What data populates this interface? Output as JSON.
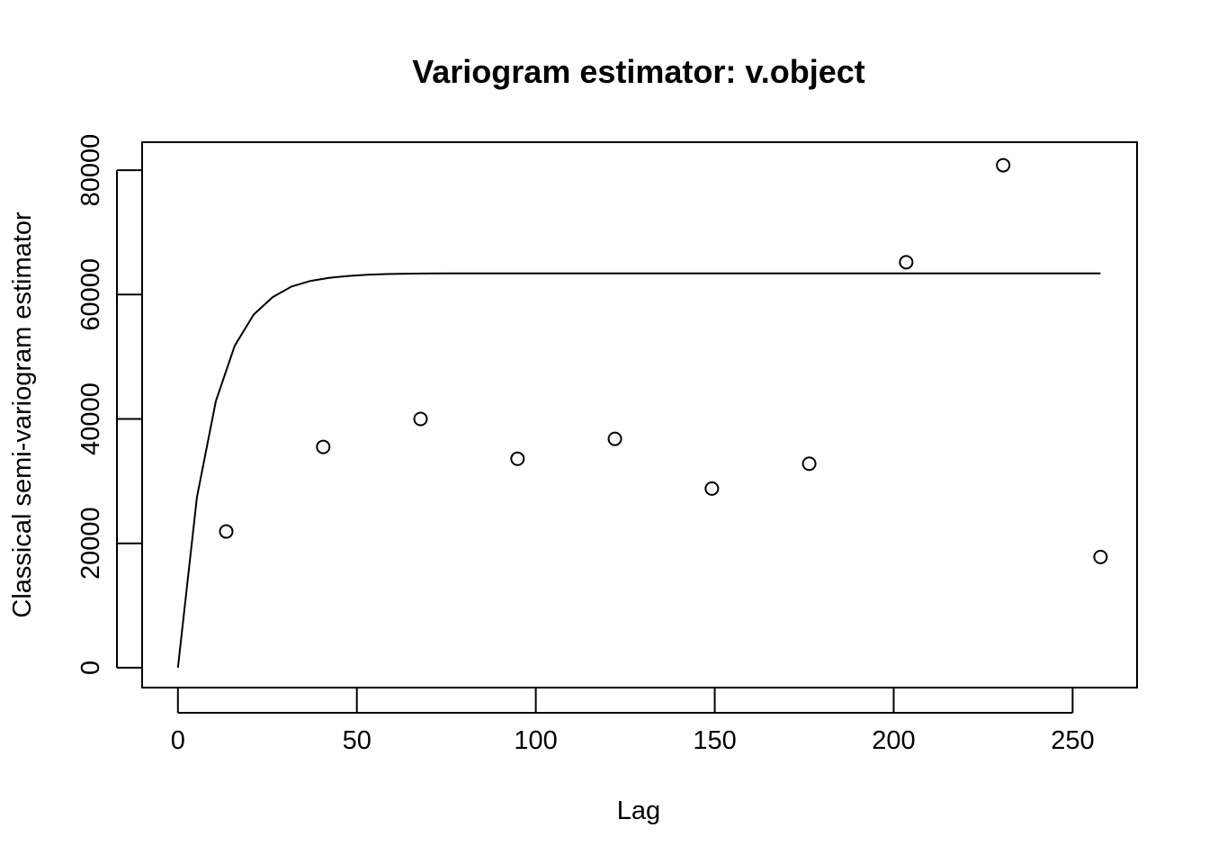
{
  "chart_data": {
    "type": "scatter",
    "title": "Variogram estimator: v.object",
    "xlabel": "Lag",
    "ylabel": "Classical semi-variogram estimator",
    "xlim": [
      -10,
      268
    ],
    "ylim": [
      -3200,
      84500
    ],
    "x_ticks": [
      0,
      50,
      100,
      150,
      200,
      250
    ],
    "x_tick_labels": [
      "0",
      "50",
      "100",
      "150",
      "200",
      "250"
    ],
    "y_ticks": [
      0,
      20000,
      40000,
      60000,
      80000
    ],
    "y_tick_labels": [
      "0",
      "20000",
      "40000",
      "60000",
      "80000"
    ],
    "grid": false,
    "points": {
      "x": [
        13.5,
        40.6,
        67.8,
        94.9,
        122.1,
        149.2,
        176.4,
        203.5,
        230.6,
        257.8
      ],
      "y": [
        21900,
        35500,
        40000,
        33600,
        36800,
        28800,
        32800,
        65200,
        80800,
        17800
      ]
    },
    "fitted_curve": {
      "x": [
        0,
        5.3,
        10.6,
        15.9,
        21.2,
        26.5,
        31.8,
        37.1,
        42.4,
        47.7,
        53,
        58.3,
        63.6,
        68.9,
        74.2,
        79.5,
        84.8,
        90,
        100,
        120,
        140,
        160,
        180,
        200,
        220,
        240,
        257.8
      ],
      "y": [
        0,
        27400,
        42900,
        51800,
        56800,
        59600,
        61300,
        62200,
        62700,
        63000,
        63200,
        63300,
        63350,
        63380,
        63400,
        63400,
        63400,
        63400,
        63400,
        63400,
        63400,
        63400,
        63400,
        63400,
        63400,
        63400,
        63400
      ]
    }
  }
}
